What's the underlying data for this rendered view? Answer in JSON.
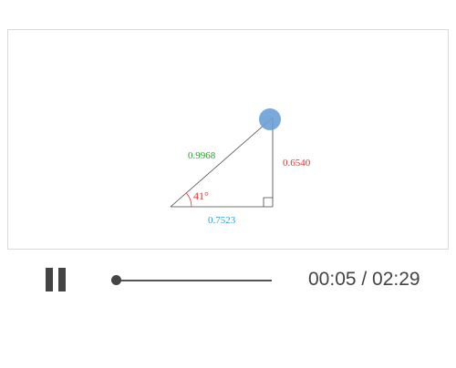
{
  "diagram": {
    "hypotenuse_label": "0.9968",
    "opposite_label": "0.6540",
    "adjacent_label": "0.7523",
    "angle_label": "41°",
    "colors": {
      "hypotenuse": "#22a02a",
      "opposite": "#e03030",
      "adjacent": "#2aa0d8",
      "angle": "#e03030",
      "handle": "#6a9fd8",
      "lines": "#444444"
    }
  },
  "player": {
    "pause_icon": "pause-icon",
    "progress": 0.034,
    "time_display": "00:05 / 02:29"
  }
}
